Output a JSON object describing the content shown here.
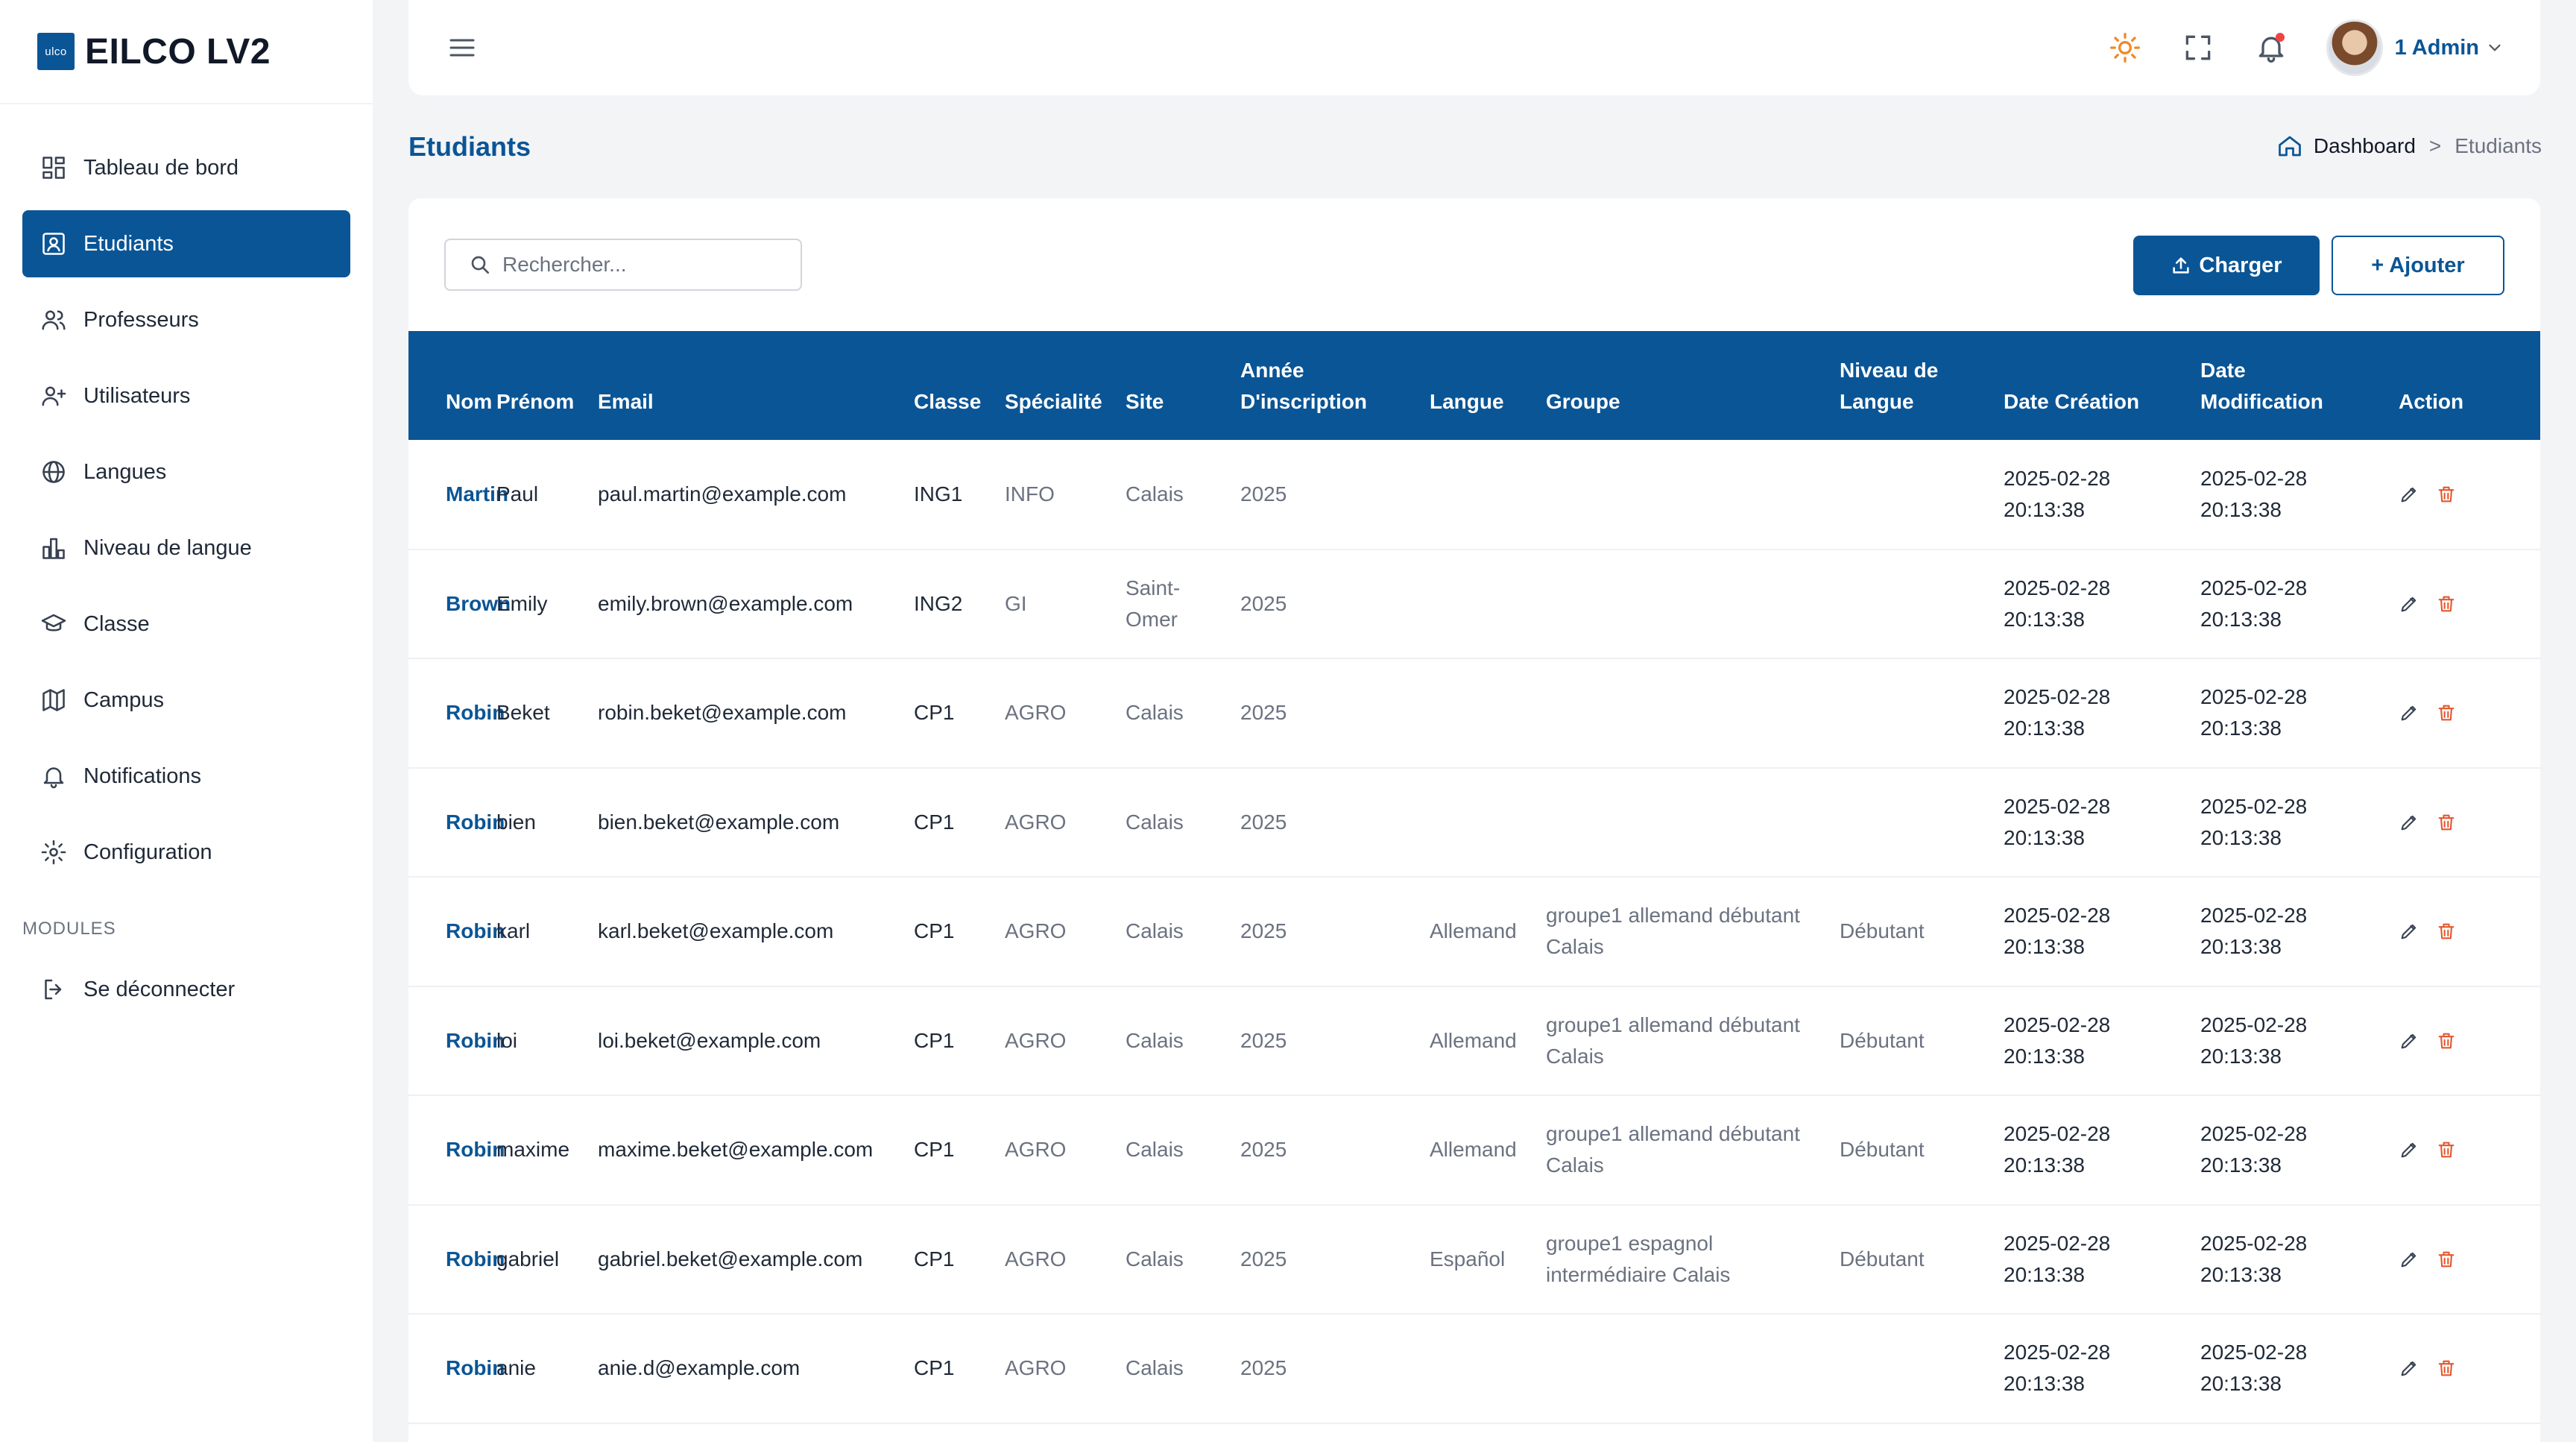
{
  "brand": {
    "logo_text": "ulco",
    "title": "EILCO LV2"
  },
  "sidebar": {
    "items": [
      {
        "label": "Tableau de bord",
        "icon": "dashboard-icon"
      },
      {
        "label": "Etudiants",
        "icon": "student-icon",
        "active": true
      },
      {
        "label": "Professeurs",
        "icon": "users-icon"
      },
      {
        "label": "Utilisateurs",
        "icon": "user-plus-icon"
      },
      {
        "label": "Langues",
        "icon": "globe-icon"
      },
      {
        "label": "Niveau de langue",
        "icon": "bar-chart-icon"
      },
      {
        "label": "Classe",
        "icon": "graduation-cap-icon"
      },
      {
        "label": "Campus",
        "icon": "map-icon"
      },
      {
        "label": "Notifications",
        "icon": "bell-icon"
      },
      {
        "label": "Configuration",
        "icon": "gear-icon"
      }
    ],
    "section_label": "MODULES",
    "logout": {
      "label": "Se déconnecter",
      "icon": "logout-icon"
    }
  },
  "header": {
    "user_name": "1 Admin"
  },
  "page": {
    "title": "Etudiants",
    "breadcrumb": {
      "home": "Dashboard",
      "separator": ">",
      "current": "Etudiants"
    }
  },
  "toolbar": {
    "search_placeholder": "Rechercher...",
    "upload_label": "Charger",
    "add_label": "+ Ajouter"
  },
  "table": {
    "headers": {
      "nom": "Nom",
      "prenom": "Prénom",
      "email": "Email",
      "classe": "Classe",
      "specialite": "Spécialité",
      "site": "Site",
      "annee": "Année D'inscription",
      "langue": "Langue",
      "groupe": "Groupe",
      "niveau": "Niveau de Langue",
      "creation": "Date Création",
      "modification": "Date Modification",
      "action": "Action"
    },
    "rows": [
      {
        "nom": "Martin",
        "prenom": "Paul",
        "email": "paul.martin@example.com",
        "classe": "ING1",
        "specialite": "INFO",
        "site": "Calais",
        "annee": "2025",
        "langue": "",
        "groupe": "",
        "niveau": "",
        "creation": "2025-02-28 20:13:38",
        "modification": "2025-02-28 20:13:38"
      },
      {
        "nom": "Brown",
        "prenom": "Emily",
        "email": "emily.brown@example.com",
        "classe": "ING2",
        "specialite": "GI",
        "site": "Saint-Omer",
        "annee": "2025",
        "langue": "",
        "groupe": "",
        "niveau": "",
        "creation": "2025-02-28 20:13:38",
        "modification": "2025-02-28 20:13:38"
      },
      {
        "nom": "Robin",
        "prenom": "Beket",
        "email": "robin.beket@example.com",
        "classe": "CP1",
        "specialite": "AGRO",
        "site": "Calais",
        "annee": "2025",
        "langue": "",
        "groupe": "",
        "niveau": "",
        "creation": "2025-02-28 20:13:38",
        "modification": "2025-02-28 20:13:38"
      },
      {
        "nom": "Robin",
        "prenom": "bien",
        "email": "bien.beket@example.com",
        "classe": "CP1",
        "specialite": "AGRO",
        "site": "Calais",
        "annee": "2025",
        "langue": "",
        "groupe": "",
        "niveau": "",
        "creation": "2025-02-28 20:13:38",
        "modification": "2025-02-28 20:13:38"
      },
      {
        "nom": "Robin",
        "prenom": "karl",
        "email": "karl.beket@example.com",
        "classe": "CP1",
        "specialite": "AGRO",
        "site": "Calais",
        "annee": "2025",
        "langue": "Allemand",
        "groupe": "groupe1 allemand débutant Calais",
        "niveau": "Débutant",
        "creation": "2025-02-28 20:13:38",
        "modification": "2025-02-28 20:13:38"
      },
      {
        "nom": "Robin",
        "prenom": "loi",
        "email": "loi.beket@example.com",
        "classe": "CP1",
        "specialite": "AGRO",
        "site": "Calais",
        "annee": "2025",
        "langue": "Allemand",
        "groupe": "groupe1 allemand débutant Calais",
        "niveau": "Débutant",
        "creation": "2025-02-28 20:13:38",
        "modification": "2025-02-28 20:13:38"
      },
      {
        "nom": "Robin",
        "prenom": "maxime",
        "email": "maxime.beket@example.com",
        "classe": "CP1",
        "specialite": "AGRO",
        "site": "Calais",
        "annee": "2025",
        "langue": "Allemand",
        "groupe": "groupe1 allemand débutant Calais",
        "niveau": "Débutant",
        "creation": "2025-02-28 20:13:38",
        "modification": "2025-02-28 20:13:38"
      },
      {
        "nom": "Robin",
        "prenom": "gabriel",
        "email": "gabriel.beket@example.com",
        "classe": "CP1",
        "specialite": "AGRO",
        "site": "Calais",
        "annee": "2025",
        "langue": "Español",
        "groupe": "groupe1 espagnol intermédiaire Calais",
        "niveau": "Débutant",
        "creation": "2025-02-28 20:13:38",
        "modification": "2025-02-28 20:13:38"
      },
      {
        "nom": "Robin",
        "prenom": "anie",
        "email": "anie.d@example.com",
        "classe": "CP1",
        "specialite": "AGRO",
        "site": "Calais",
        "annee": "2025",
        "langue": "",
        "groupe": "",
        "niveau": "",
        "creation": "2025-02-28 20:13:38",
        "modification": "2025-02-28 20:13:38"
      }
    ]
  },
  "colors": {
    "primary": "#0a5596",
    "danger": "#e4572e",
    "sun": "#f08a24"
  }
}
